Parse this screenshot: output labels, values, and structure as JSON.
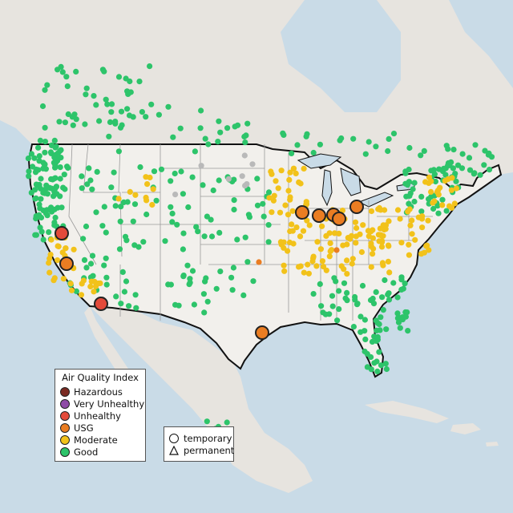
{
  "colors": {
    "land_us": "#f2f0ec",
    "land_other": "#e7e4df",
    "water": "#c9dbe7",
    "border": "#111111",
    "state_line": "#9a9a9a",
    "hazardous": "#7a2a22",
    "very_unhealthy": "#8e4aa6",
    "unhealthy": "#e34a3a",
    "usg": "#ea7d22",
    "moderate": "#f2c21a",
    "good": "#2dc46a",
    "nodata": "#b9b9b9"
  },
  "legend": {
    "title": "Air Quality Index",
    "items": [
      {
        "label": "Hazardous",
        "color": "#7a2a22"
      },
      {
        "label": "Very Unhealthy",
        "color": "#8e4aa6"
      },
      {
        "label": "Unhealthy",
        "color": "#e34a3a"
      },
      {
        "label": "USG",
        "color": "#ea7d22"
      },
      {
        "label": "Moderate",
        "color": "#f2c21a"
      },
      {
        "label": "Good",
        "color": "#2dc46a"
      }
    ]
  },
  "type_legend": {
    "temporary": "temporary",
    "permanent": "permanent"
  }
}
